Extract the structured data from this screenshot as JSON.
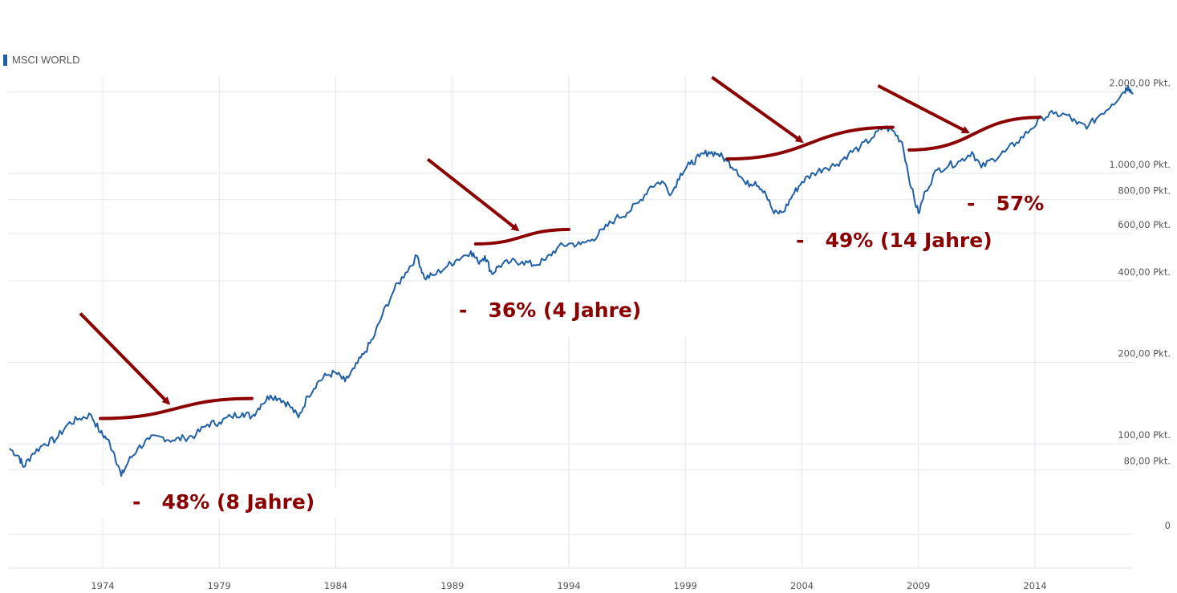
{
  "chart_data": {
    "type": "line",
    "title": "",
    "legend": {
      "label": "MSCI WORLD",
      "placement": "top-left"
    },
    "xlabel": "",
    "ylabel": "",
    "scale": "log",
    "grid": true,
    "x_ticks": [
      "1974",
      "1979",
      "1984",
      "1989",
      "1994",
      "1999",
      "2004",
      "2009",
      "2014"
    ],
    "y_ticks": [
      {
        "value": 2000,
        "label": "2.000,00 Pkt."
      },
      {
        "value": 1000,
        "label": "1.000,00 Pkt."
      },
      {
        "value": 800,
        "label": "800,00 Pkt."
      },
      {
        "value": 600,
        "label": "600,00 Pkt."
      },
      {
        "value": 400,
        "label": "400,00 Pkt."
      },
      {
        "value": 200,
        "label": "200,00 Pkt."
      },
      {
        "value": 100,
        "label": "100,00 Pkt."
      },
      {
        "value": 80,
        "label": "80,00 Pkt."
      },
      {
        "value": 0,
        "label": "0"
      }
    ],
    "series": [
      {
        "name": "MSCI WORLD",
        "color": "#1f5fa6",
        "points": [
          [
            1970.0,
            96
          ],
          [
            1970.4,
            90
          ],
          [
            1970.6,
            82
          ],
          [
            1971.0,
            92
          ],
          [
            1971.5,
            100
          ],
          [
            1972.0,
            104
          ],
          [
            1972.5,
            118
          ],
          [
            1973.0,
            124
          ],
          [
            1973.5,
            128
          ],
          [
            1973.9,
            110
          ],
          [
            1974.2,
            104
          ],
          [
            1974.5,
            92
          ],
          [
            1974.8,
            76
          ],
          [
            1975.1,
            86
          ],
          [
            1975.5,
            96
          ],
          [
            1976.0,
            104
          ],
          [
            1976.5,
            106
          ],
          [
            1977.0,
            103
          ],
          [
            1977.5,
            105
          ],
          [
            1978.0,
            108
          ],
          [
            1978.5,
            118
          ],
          [
            1979.0,
            120
          ],
          [
            1979.5,
            126
          ],
          [
            1980.0,
            130
          ],
          [
            1980.4,
            126
          ],
          [
            1980.8,
            140
          ],
          [
            1981.2,
            151
          ],
          [
            1981.6,
            147
          ],
          [
            1982.0,
            139
          ],
          [
            1982.4,
            125
          ],
          [
            1982.8,
            150
          ],
          [
            1983.2,
            168
          ],
          [
            1983.6,
            179
          ],
          [
            1984.0,
            183
          ],
          [
            1984.4,
            170
          ],
          [
            1984.8,
            190
          ],
          [
            1985.2,
            215
          ],
          [
            1985.6,
            245
          ],
          [
            1986.0,
            300
          ],
          [
            1986.5,
            370
          ],
          [
            1987.0,
            430
          ],
          [
            1987.5,
            495
          ],
          [
            1987.8,
            410
          ],
          [
            1988.2,
            420
          ],
          [
            1988.8,
            455
          ],
          [
            1989.2,
            480
          ],
          [
            1989.8,
            515
          ],
          [
            1990.1,
            470
          ],
          [
            1990.4,
            495
          ],
          [
            1990.7,
            425
          ],
          [
            1991.0,
            455
          ],
          [
            1991.5,
            470
          ],
          [
            1992.0,
            472
          ],
          [
            1992.5,
            458
          ],
          [
            1993.0,
            478
          ],
          [
            1993.5,
            530
          ],
          [
            1994.0,
            550
          ],
          [
            1994.5,
            545
          ],
          [
            1995.0,
            570
          ],
          [
            1995.5,
            620
          ],
          [
            1996.0,
            680
          ],
          [
            1996.5,
            715
          ],
          [
            1997.0,
            780
          ],
          [
            1997.5,
            895
          ],
          [
            1998.0,
            935
          ],
          [
            1998.4,
            840
          ],
          [
            1998.8,
            1000
          ],
          [
            1999.2,
            1080
          ],
          [
            1999.6,
            1150
          ],
          [
            2000.0,
            1200
          ],
          [
            2000.4,
            1180
          ],
          [
            2000.8,
            1110
          ],
          [
            2001.2,
            1030
          ],
          [
            2001.6,
            910
          ],
          [
            2002.0,
            930
          ],
          [
            2002.4,
            860
          ],
          [
            2002.8,
            710
          ],
          [
            2003.2,
            720
          ],
          [
            2003.6,
            830
          ],
          [
            2004.0,
            930
          ],
          [
            2004.5,
            1000
          ],
          [
            2005.0,
            1050
          ],
          [
            2005.5,
            1080
          ],
          [
            2006.0,
            1180
          ],
          [
            2006.5,
            1250
          ],
          [
            2007.0,
            1350
          ],
          [
            2007.5,
            1480
          ],
          [
            2007.9,
            1440
          ],
          [
            2008.3,
            1300
          ],
          [
            2008.7,
            880
          ],
          [
            2009.0,
            710
          ],
          [
            2009.3,
            860
          ],
          [
            2009.8,
            1030
          ],
          [
            2010.3,
            1070
          ],
          [
            2010.8,
            1110
          ],
          [
            2011.3,
            1200
          ],
          [
            2011.7,
            1050
          ],
          [
            2012.2,
            1130
          ],
          [
            2012.7,
            1200
          ],
          [
            2013.2,
            1300
          ],
          [
            2013.8,
            1450
          ],
          [
            2014.3,
            1610
          ],
          [
            2014.8,
            1660
          ],
          [
            2015.4,
            1640
          ],
          [
            2015.8,
            1520
          ],
          [
            2016.3,
            1500
          ],
          [
            2016.8,
            1650
          ],
          [
            2017.3,
            1800
          ],
          [
            2017.8,
            2000
          ],
          [
            2018.0,
            2100
          ],
          [
            2018.2,
            1960
          ]
        ]
      }
    ],
    "annotations": [
      {
        "text": "-   48% (8 Jahre)",
        "color": "#8b0000",
        "recovery_from": [
          1973.9,
          124
        ],
        "recovery_to": [
          1980.4,
          147
        ]
      },
      {
        "text": "-   36% (4 Jahre)",
        "color": "#8b0000",
        "recovery_from": [
          1990.0,
          548
        ],
        "recovery_to": [
          1994.0,
          620
        ]
      },
      {
        "text": "-   49% (14 Jahre)",
        "color": "#8b0000",
        "recovery_from": [
          2000.8,
          1130
        ],
        "recovery_to": [
          2007.9,
          1480
        ]
      },
      {
        "text": "-   57%",
        "color": "#8b0000",
        "recovery_from": [
          2008.6,
          1220
        ],
        "recovery_to": [
          2014.2,
          1610
        ]
      }
    ]
  }
}
